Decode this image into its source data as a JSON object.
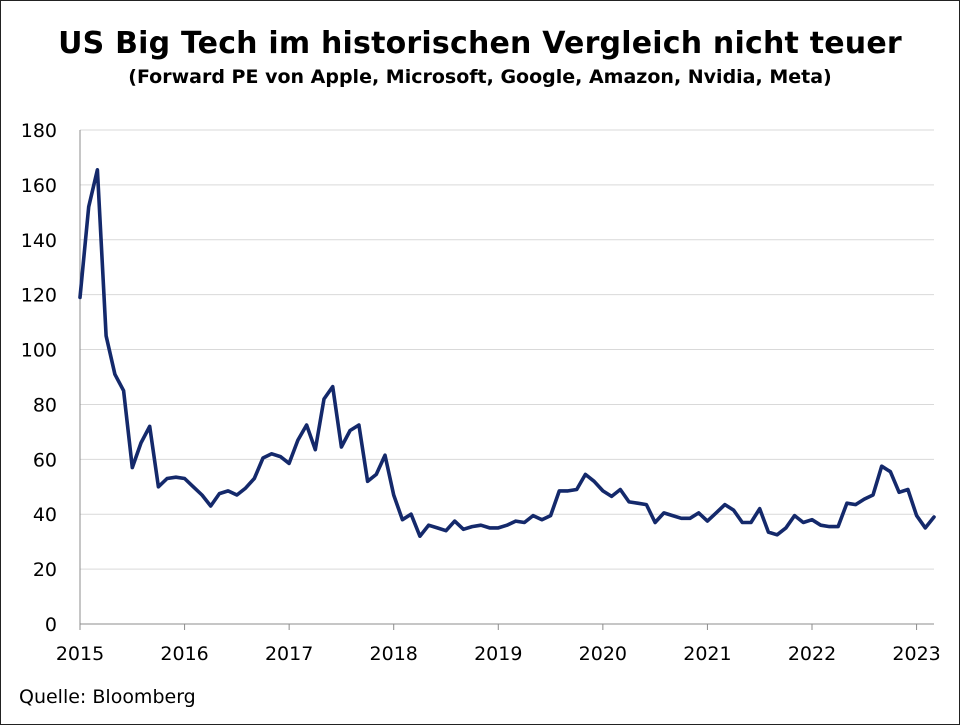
{
  "chart_data": {
    "type": "line",
    "title": "US Big Tech im historischen Vergleich nicht teuer",
    "subtitle": "(Forward PE von Apple, Microsoft, Google, Amazon, Nvidia, Meta)",
    "source": "Quelle: Bloomberg",
    "xlabel": "",
    "ylabel": "",
    "ylim": [
      0,
      180
    ],
    "yticks": [
      "0",
      "20",
      "40",
      "60",
      "80",
      "100",
      "120",
      "140",
      "160",
      "180"
    ],
    "xlim": [
      "2015-01",
      "2023-03"
    ],
    "xticks": [
      "2015",
      "2016",
      "2017",
      "2018",
      "2019",
      "2020",
      "2021",
      "2022",
      "2023"
    ],
    "grid": true,
    "line_color": "#14296b",
    "series": [
      {
        "x": [
          "2015-01",
          "2015-02",
          "2015-03",
          "2015-04",
          "2015-05",
          "2015-06",
          "2015-07",
          "2015-08",
          "2015-09",
          "2015-10",
          "2015-11",
          "2015-12",
          "2016-01",
          "2016-02",
          "2016-03",
          "2016-04",
          "2016-05",
          "2016-06",
          "2016-07",
          "2016-08",
          "2016-09",
          "2016-10",
          "2016-11",
          "2016-12",
          "2017-01",
          "2017-02",
          "2017-03",
          "2017-04",
          "2017-05",
          "2017-06",
          "2017-07",
          "2017-08",
          "2017-09",
          "2017-10",
          "2017-11",
          "2017-12",
          "2018-01",
          "2018-02",
          "2018-03",
          "2018-04",
          "2018-05",
          "2018-06",
          "2018-07",
          "2018-08",
          "2018-09",
          "2018-10",
          "2018-11",
          "2018-12",
          "2019-01",
          "2019-02",
          "2019-03",
          "2019-04",
          "2019-05",
          "2019-06",
          "2019-07",
          "2019-08",
          "2019-09",
          "2019-10",
          "2019-11",
          "2019-12",
          "2020-01",
          "2020-02",
          "2020-03",
          "2020-04",
          "2020-05",
          "2020-06",
          "2020-07",
          "2020-08",
          "2020-09",
          "2020-10",
          "2020-11",
          "2020-12",
          "2021-01",
          "2021-02",
          "2021-03",
          "2021-04",
          "2021-05",
          "2021-06",
          "2021-07",
          "2021-08",
          "2021-09",
          "2021-10",
          "2021-11",
          "2021-12",
          "2022-01",
          "2022-02",
          "2022-03",
          "2022-04",
          "2022-05",
          "2022-06",
          "2022-07",
          "2022-08",
          "2022-09",
          "2022-10",
          "2022-11",
          "2022-12",
          "2023-01",
          "2023-02",
          "2023-03"
        ],
        "values": [
          119,
          152,
          165.5,
          105,
          91,
          85,
          57,
          66,
          72,
          50,
          53,
          53.5,
          53,
          50,
          47,
          43,
          47.5,
          48.5,
          47,
          49.5,
          53,
          60.5,
          62,
          61,
          58.5,
          67,
          72.5,
          63.5,
          82,
          86.5,
          64.5,
          70.5,
          72.5,
          52,
          54.5,
          61.5,
          47,
          38,
          40,
          32,
          36,
          35,
          34,
          37.5,
          34.5,
          35.5,
          36,
          35,
          35,
          36,
          37.5,
          37,
          39.5,
          38,
          39.5,
          48.5,
          48.5,
          49,
          54.5,
          52,
          48.5,
          46.5,
          49,
          44.5,
          44,
          43.5,
          37,
          40.5,
          39.5,
          38.5,
          38.5,
          40.5,
          37.5,
          40.5,
          43.5,
          41.5,
          37,
          37,
          42,
          33.5,
          32.5,
          35,
          39.5,
          37,
          38,
          36,
          35.5,
          35.5,
          44,
          43.5,
          45.5,
          47,
          57.5,
          55.5,
          48,
          49,
          39.5,
          35,
          39
        ]
      }
    ]
  }
}
